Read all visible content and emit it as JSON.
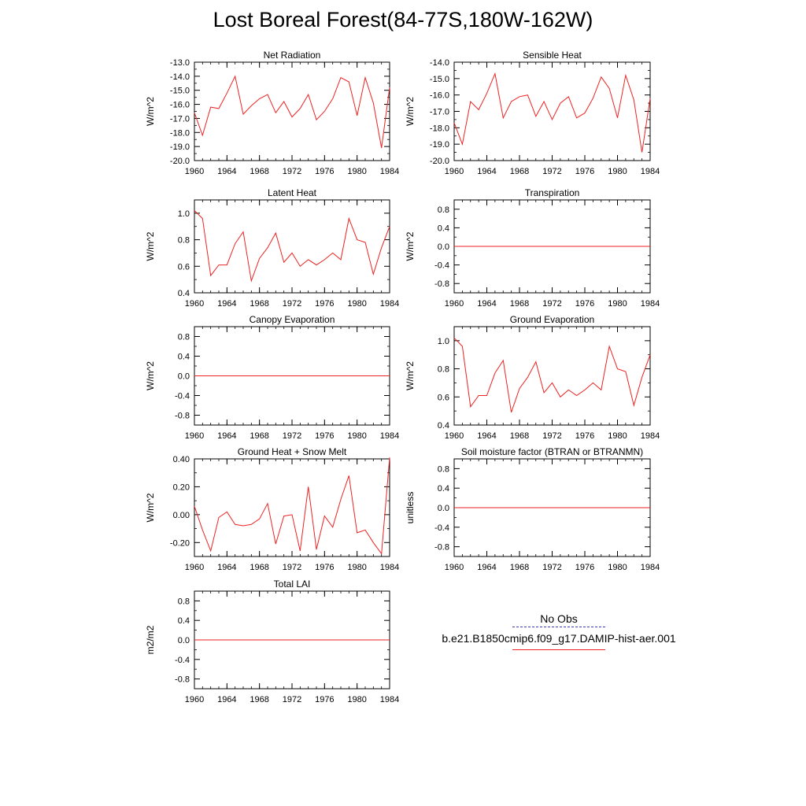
{
  "title": "Lost Boreal Forest(84-77S,180W-162W)",
  "legend": {
    "obs_label": "No Obs",
    "model_label": "b.e21.B1850cmip6.f09_g17.DAMIP-hist-aer.001",
    "obs_color": "#3b3bb8",
    "model_color": "#ee2222"
  },
  "chart_data": [
    {
      "type": "line",
      "title": "Net Radiation",
      "ylabel": "W/m^2",
      "xlim": [
        1960,
        1984
      ],
      "ylim": [
        -20.0,
        -13.0
      ],
      "xticks": [
        1960,
        1964,
        1968,
        1972,
        1976,
        1980,
        1984
      ],
      "xtick_labels": [
        "1960",
        "1964",
        "1968",
        "1972",
        "1976",
        "1980",
        "1984"
      ],
      "yticks": [
        -20.0,
        -19.0,
        -18.0,
        -17.0,
        -16.0,
        -15.0,
        -14.0,
        -13.0
      ],
      "ytick_labels": [
        "-20.0",
        "-19.0",
        "-18.0",
        "-17.0",
        "-16.0",
        "-15.0",
        "-14.0",
        "-13.0"
      ],
      "x": [
        1960,
        1961,
        1962,
        1963,
        1964,
        1965,
        1966,
        1967,
        1968,
        1969,
        1970,
        1971,
        1972,
        1973,
        1974,
        1975,
        1976,
        1977,
        1978,
        1979,
        1980,
        1981,
        1982,
        1983,
        1984
      ],
      "series": [
        {
          "values": [
            -16.6,
            -18.2,
            -16.2,
            -16.3,
            -15.2,
            -14.0,
            -16.7,
            -16.1,
            -15.6,
            -15.3,
            -16.6,
            -15.8,
            -16.9,
            -16.3,
            -15.3,
            -17.1,
            -16.5,
            -15.6,
            -14.1,
            -14.4,
            -16.8,
            -14.1,
            -15.9,
            -19.1,
            -14.8
          ]
        }
      ]
    },
    {
      "type": "line",
      "title": "Sensible Heat",
      "ylabel": "W/m^2",
      "xlim": [
        1960,
        1984
      ],
      "ylim": [
        -20.0,
        -14.0
      ],
      "xticks": [
        1960,
        1964,
        1968,
        1972,
        1976,
        1980,
        1984
      ],
      "xtick_labels": [
        "1960",
        "1964",
        "1968",
        "1972",
        "1976",
        "1980",
        "1984"
      ],
      "yticks": [
        -20.0,
        -19.0,
        -18.0,
        -17.0,
        -16.0,
        -15.0,
        -14.0
      ],
      "ytick_labels": [
        "-20.0",
        "-19.0",
        "-18.0",
        "-17.0",
        "-16.0",
        "-15.0",
        "-14.0"
      ],
      "x": [
        1960,
        1961,
        1962,
        1963,
        1964,
        1965,
        1966,
        1967,
        1968,
        1969,
        1970,
        1971,
        1972,
        1973,
        1974,
        1975,
        1976,
        1977,
        1978,
        1979,
        1980,
        1981,
        1982,
        1983,
        1984
      ],
      "series": [
        {
          "values": [
            -17.7,
            -19.0,
            -16.4,
            -16.9,
            -15.9,
            -14.7,
            -17.4,
            -16.4,
            -16.1,
            -16.0,
            -17.3,
            -16.4,
            -17.5,
            -16.5,
            -16.1,
            -17.4,
            -17.1,
            -16.2,
            -14.9,
            -15.6,
            -17.4,
            -14.8,
            -16.3,
            -19.5,
            -16.2
          ]
        }
      ]
    },
    {
      "type": "line",
      "title": "Latent Heat",
      "ylabel": "W/m^2",
      "xlim": [
        1960,
        1984
      ],
      "ylim": [
        0.4,
        1.1
      ],
      "xticks": [
        1960,
        1964,
        1968,
        1972,
        1976,
        1980,
        1984
      ],
      "xtick_labels": [
        "1960",
        "1964",
        "1968",
        "1972",
        "1976",
        "1980",
        "1984"
      ],
      "yticks": [
        0.4,
        0.6,
        0.8,
        1.0
      ],
      "ytick_labels": [
        "0.4",
        "0.6",
        "0.8",
        "1.0"
      ],
      "x": [
        1960,
        1961,
        1962,
        1963,
        1964,
        1965,
        1966,
        1967,
        1968,
        1969,
        1970,
        1971,
        1972,
        1973,
        1974,
        1975,
        1976,
        1977,
        1978,
        1979,
        1980,
        1981,
        1982,
        1983,
        1984
      ],
      "series": [
        {
          "values": [
            1.02,
            0.96,
            0.53,
            0.61,
            0.61,
            0.77,
            0.86,
            0.49,
            0.66,
            0.74,
            0.85,
            0.63,
            0.7,
            0.6,
            0.65,
            0.61,
            0.65,
            0.7,
            0.65,
            0.96,
            0.8,
            0.78,
            0.54,
            0.74,
            0.9
          ]
        }
      ]
    },
    {
      "type": "line",
      "title": "Transpiration",
      "ylabel": "W/m^2",
      "xlim": [
        1960,
        1984
      ],
      "ylim": [
        -1.0,
        1.0
      ],
      "xticks": [
        1960,
        1964,
        1968,
        1972,
        1976,
        1980,
        1984
      ],
      "xtick_labels": [
        "1960",
        "1964",
        "1968",
        "1972",
        "1976",
        "1980",
        "1984"
      ],
      "yticks": [
        -0.8,
        -0.4,
        0.0,
        0.4,
        0.8
      ],
      "ytick_labels": [
        "-0.8",
        "-0.4",
        "0.0",
        "0.4",
        "0.8"
      ],
      "x": [
        1960,
        1984
      ],
      "series": [
        {
          "values": [
            0.0,
            0.0
          ]
        }
      ]
    },
    {
      "type": "line",
      "title": "Canopy Evaporation",
      "ylabel": "W/m^2",
      "xlim": [
        1960,
        1984
      ],
      "ylim": [
        -1.0,
        1.0
      ],
      "xticks": [
        1960,
        1964,
        1968,
        1972,
        1976,
        1980,
        1984
      ],
      "xtick_labels": [
        "1960",
        "1964",
        "1968",
        "1972",
        "1976",
        "1980",
        "1984"
      ],
      "yticks": [
        -0.8,
        -0.4,
        0.0,
        0.4,
        0.8
      ],
      "ytick_labels": [
        "-0.8",
        "-0.4",
        "0.0",
        "0.4",
        "0.8"
      ],
      "x": [
        1960,
        1984
      ],
      "series": [
        {
          "values": [
            0.0,
            0.0
          ]
        }
      ]
    },
    {
      "type": "line",
      "title": "Ground Evaporation",
      "ylabel": "W/m^2",
      "xlim": [
        1960,
        1984
      ],
      "ylim": [
        0.4,
        1.1
      ],
      "xticks": [
        1960,
        1964,
        1968,
        1972,
        1976,
        1980,
        1984
      ],
      "xtick_labels": [
        "1960",
        "1964",
        "1968",
        "1972",
        "1976",
        "1980",
        "1984"
      ],
      "yticks": [
        0.4,
        0.6,
        0.8,
        1.0
      ],
      "ytick_labels": [
        "0.4",
        "0.6",
        "0.8",
        "1.0"
      ],
      "x": [
        1960,
        1961,
        1962,
        1963,
        1964,
        1965,
        1966,
        1967,
        1968,
        1969,
        1970,
        1971,
        1972,
        1973,
        1974,
        1975,
        1976,
        1977,
        1978,
        1979,
        1980,
        1981,
        1982,
        1983,
        1984
      ],
      "series": [
        {
          "values": [
            1.02,
            0.96,
            0.53,
            0.61,
            0.61,
            0.77,
            0.86,
            0.49,
            0.66,
            0.74,
            0.85,
            0.63,
            0.7,
            0.6,
            0.65,
            0.61,
            0.65,
            0.7,
            0.65,
            0.96,
            0.8,
            0.78,
            0.54,
            0.74,
            0.9
          ]
        }
      ]
    },
    {
      "type": "line",
      "title": "Ground Heat + Snow Melt",
      "ylabel": "W/m^2",
      "xlim": [
        1960,
        1984
      ],
      "ylim": [
        -0.3,
        0.4
      ],
      "xticks": [
        1960,
        1964,
        1968,
        1972,
        1976,
        1980,
        1984
      ],
      "xtick_labels": [
        "1960",
        "1964",
        "1968",
        "1972",
        "1976",
        "1980",
        "1984"
      ],
      "yticks": [
        -0.2,
        0.0,
        0.2,
        0.4
      ],
      "ytick_labels": [
        "-0.20",
        "0.00",
        "0.20",
        "0.40"
      ],
      "x": [
        1960,
        1961,
        1962,
        1963,
        1964,
        1965,
        1966,
        1967,
        1968,
        1969,
        1970,
        1971,
        1972,
        1973,
        1974,
        1975,
        1976,
        1977,
        1978,
        1979,
        1980,
        1981,
        1982,
        1983,
        1984
      ],
      "series": [
        {
          "values": [
            0.06,
            -0.11,
            -0.26,
            -0.02,
            0.02,
            -0.07,
            -0.08,
            -0.07,
            -0.03,
            0.08,
            -0.21,
            -0.01,
            0.0,
            -0.26,
            0.2,
            -0.25,
            -0.01,
            -0.09,
            0.11,
            0.28,
            -0.13,
            -0.11,
            -0.2,
            -0.28,
            0.41
          ]
        }
      ]
    },
    {
      "type": "line",
      "title": "Soil moisture factor (BTRAN or BTRANMN)",
      "ylabel": "unitless",
      "xlim": [
        1960,
        1984
      ],
      "ylim": [
        -1.0,
        1.0
      ],
      "xticks": [
        1960,
        1964,
        1968,
        1972,
        1976,
        1980,
        1984
      ],
      "xtick_labels": [
        "1960",
        "1964",
        "1968",
        "1972",
        "1976",
        "1980",
        "1984"
      ],
      "yticks": [
        -0.8,
        -0.4,
        0.0,
        0.4,
        0.8
      ],
      "ytick_labels": [
        "-0.8",
        "-0.4",
        "0.0",
        "0.4",
        "0.8"
      ],
      "x": [
        1960,
        1984
      ],
      "series": [
        {
          "values": [
            0.0,
            0.0
          ]
        }
      ]
    },
    {
      "type": "line",
      "title": "Total LAI",
      "ylabel": "m2/m2",
      "xlim": [
        1960,
        1984
      ],
      "ylim": [
        -1.0,
        1.0
      ],
      "xticks": [
        1960,
        1964,
        1968,
        1972,
        1976,
        1980,
        1984
      ],
      "xtick_labels": [
        "1960",
        "1964",
        "1968",
        "1972",
        "1976",
        "1980",
        "1984"
      ],
      "yticks": [
        -0.8,
        -0.4,
        0.0,
        0.4,
        0.8
      ],
      "ytick_labels": [
        "-0.8",
        "-0.4",
        "0.0",
        "0.4",
        "0.8"
      ],
      "x": [
        1960,
        1984
      ],
      "series": [
        {
          "values": [
            0.0,
            0.0
          ]
        }
      ]
    }
  ]
}
